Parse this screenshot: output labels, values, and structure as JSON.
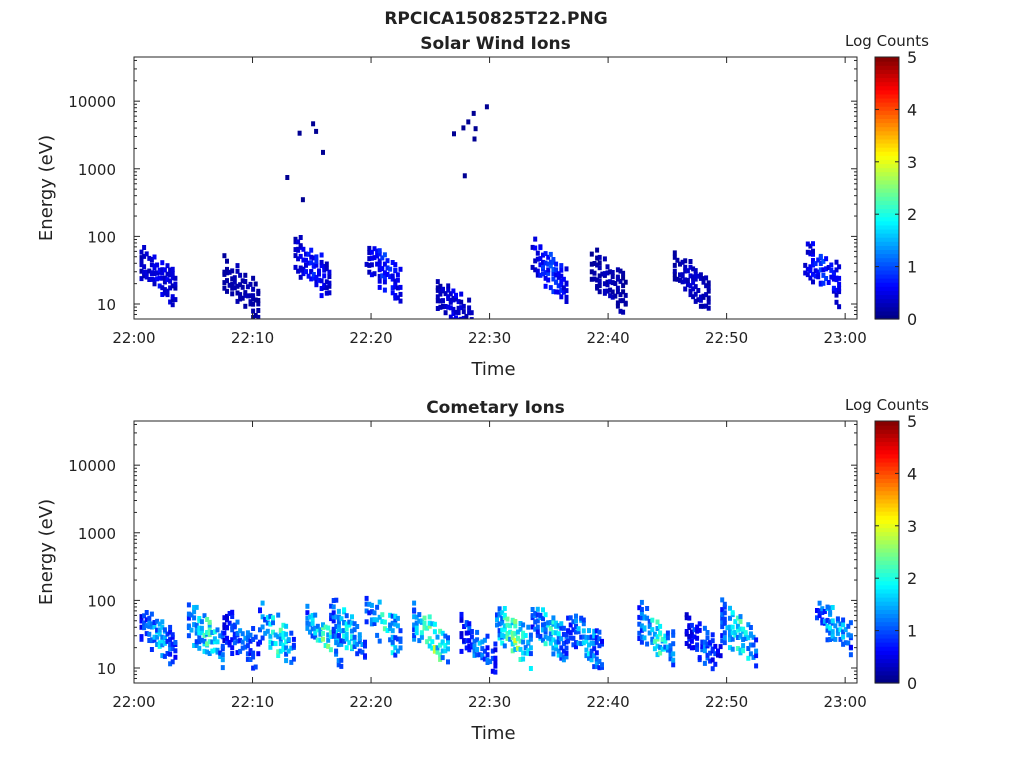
{
  "figure_title": "RPCICA150825T22.PNG",
  "colormap": [
    "#00007f",
    "#0000ff",
    "#007fff",
    "#00ffff",
    "#7fff7f",
    "#ffff00",
    "#ff7f00",
    "#ff0000",
    "#7f0000"
  ],
  "chart_data": [
    {
      "type": "heatmap",
      "title": "Solar Wind Ions",
      "xlabel": "Time",
      "ylabel": "Energy (eV)",
      "y_scale": "log",
      "ylim": [
        6,
        45000
      ],
      "xlim": [
        "22:00",
        "23:01"
      ],
      "x_ticks": [
        "22:00",
        "22:10",
        "22:20",
        "22:30",
        "22:40",
        "22:50",
        "23:00"
      ],
      "y_ticks": [
        "10",
        "100",
        "1000",
        "10000"
      ],
      "colorbar_label": "Log Counts",
      "colorbar_range": [
        0,
        5
      ],
      "colorbar_ticks": [
        "0",
        "1",
        "2",
        "3",
        "4",
        "5"
      ],
      "summary": [
        {
          "time": "22:02",
          "energy_eV": 30,
          "log_counts": 0.6
        },
        {
          "time": "22:09",
          "energy_eV": 20,
          "log_counts": 0.3
        },
        {
          "time": "22:15",
          "energy_eV": 40,
          "log_counts": 0.7
        },
        {
          "time": "22:21",
          "energy_eV": 35,
          "log_counts": 0.8
        },
        {
          "time": "22:27",
          "energy_eV": 10,
          "log_counts": 0.5
        },
        {
          "time": "22:35",
          "energy_eV": 35,
          "log_counts": 0.9
        },
        {
          "time": "22:40",
          "energy_eV": 25,
          "log_counts": 0.3
        },
        {
          "time": "22:47",
          "energy_eV": 25,
          "log_counts": 0.4
        },
        {
          "time": "22:58",
          "energy_eV": 35,
          "log_counts": 0.8
        },
        {
          "time": "22:15",
          "energy_eV": 1500,
          "log_counts": 0.1
        },
        {
          "time": "22:28",
          "energy_eV": 2000,
          "log_counts": 0.1
        }
      ]
    },
    {
      "type": "heatmap",
      "title": "Cometary Ions",
      "xlabel": "Time",
      "ylabel": "Energy (eV)",
      "y_scale": "log",
      "ylim": [
        6,
        45000
      ],
      "xlim": [
        "22:00",
        "23:01"
      ],
      "x_ticks": [
        "22:00",
        "22:10",
        "22:20",
        "22:30",
        "22:40",
        "22:50",
        "23:00"
      ],
      "y_ticks": [
        "10",
        "100",
        "1000",
        "10000"
      ],
      "colorbar_label": "Log Counts",
      "colorbar_range": [
        0,
        5
      ],
      "colorbar_ticks": [
        "0",
        "1",
        "2",
        "3",
        "4",
        "5"
      ],
      "summary": [
        {
          "time": "22:02",
          "energy_eV": 35,
          "log_counts": 1.5
        },
        {
          "time": "22:06",
          "energy_eV": 35,
          "log_counts": 2.0
        },
        {
          "time": "22:09",
          "energy_eV": 30,
          "log_counts": 1.2
        },
        {
          "time": "22:12",
          "energy_eV": 35,
          "log_counts": 2.0
        },
        {
          "time": "22:16",
          "energy_eV": 35,
          "log_counts": 2.2
        },
        {
          "time": "22:18",
          "energy_eV": 40,
          "log_counts": 1.8
        },
        {
          "time": "22:21",
          "energy_eV": 50,
          "log_counts": 1.9
        },
        {
          "time": "22:25",
          "energy_eV": 35,
          "log_counts": 2.4
        },
        {
          "time": "22:29",
          "energy_eV": 25,
          "log_counts": 1.3
        },
        {
          "time": "22:32",
          "energy_eV": 35,
          "log_counts": 2.5
        },
        {
          "time": "22:35",
          "energy_eV": 40,
          "log_counts": 1.9
        },
        {
          "time": "22:38",
          "energy_eV": 30,
          "log_counts": 1.6
        },
        {
          "time": "22:44",
          "energy_eV": 35,
          "log_counts": 2.0
        },
        {
          "time": "22:48",
          "energy_eV": 25,
          "log_counts": 1.1
        },
        {
          "time": "22:51",
          "energy_eV": 35,
          "log_counts": 1.9
        },
        {
          "time": "22:59",
          "energy_eV": 50,
          "log_counts": 1.7
        }
      ]
    }
  ]
}
